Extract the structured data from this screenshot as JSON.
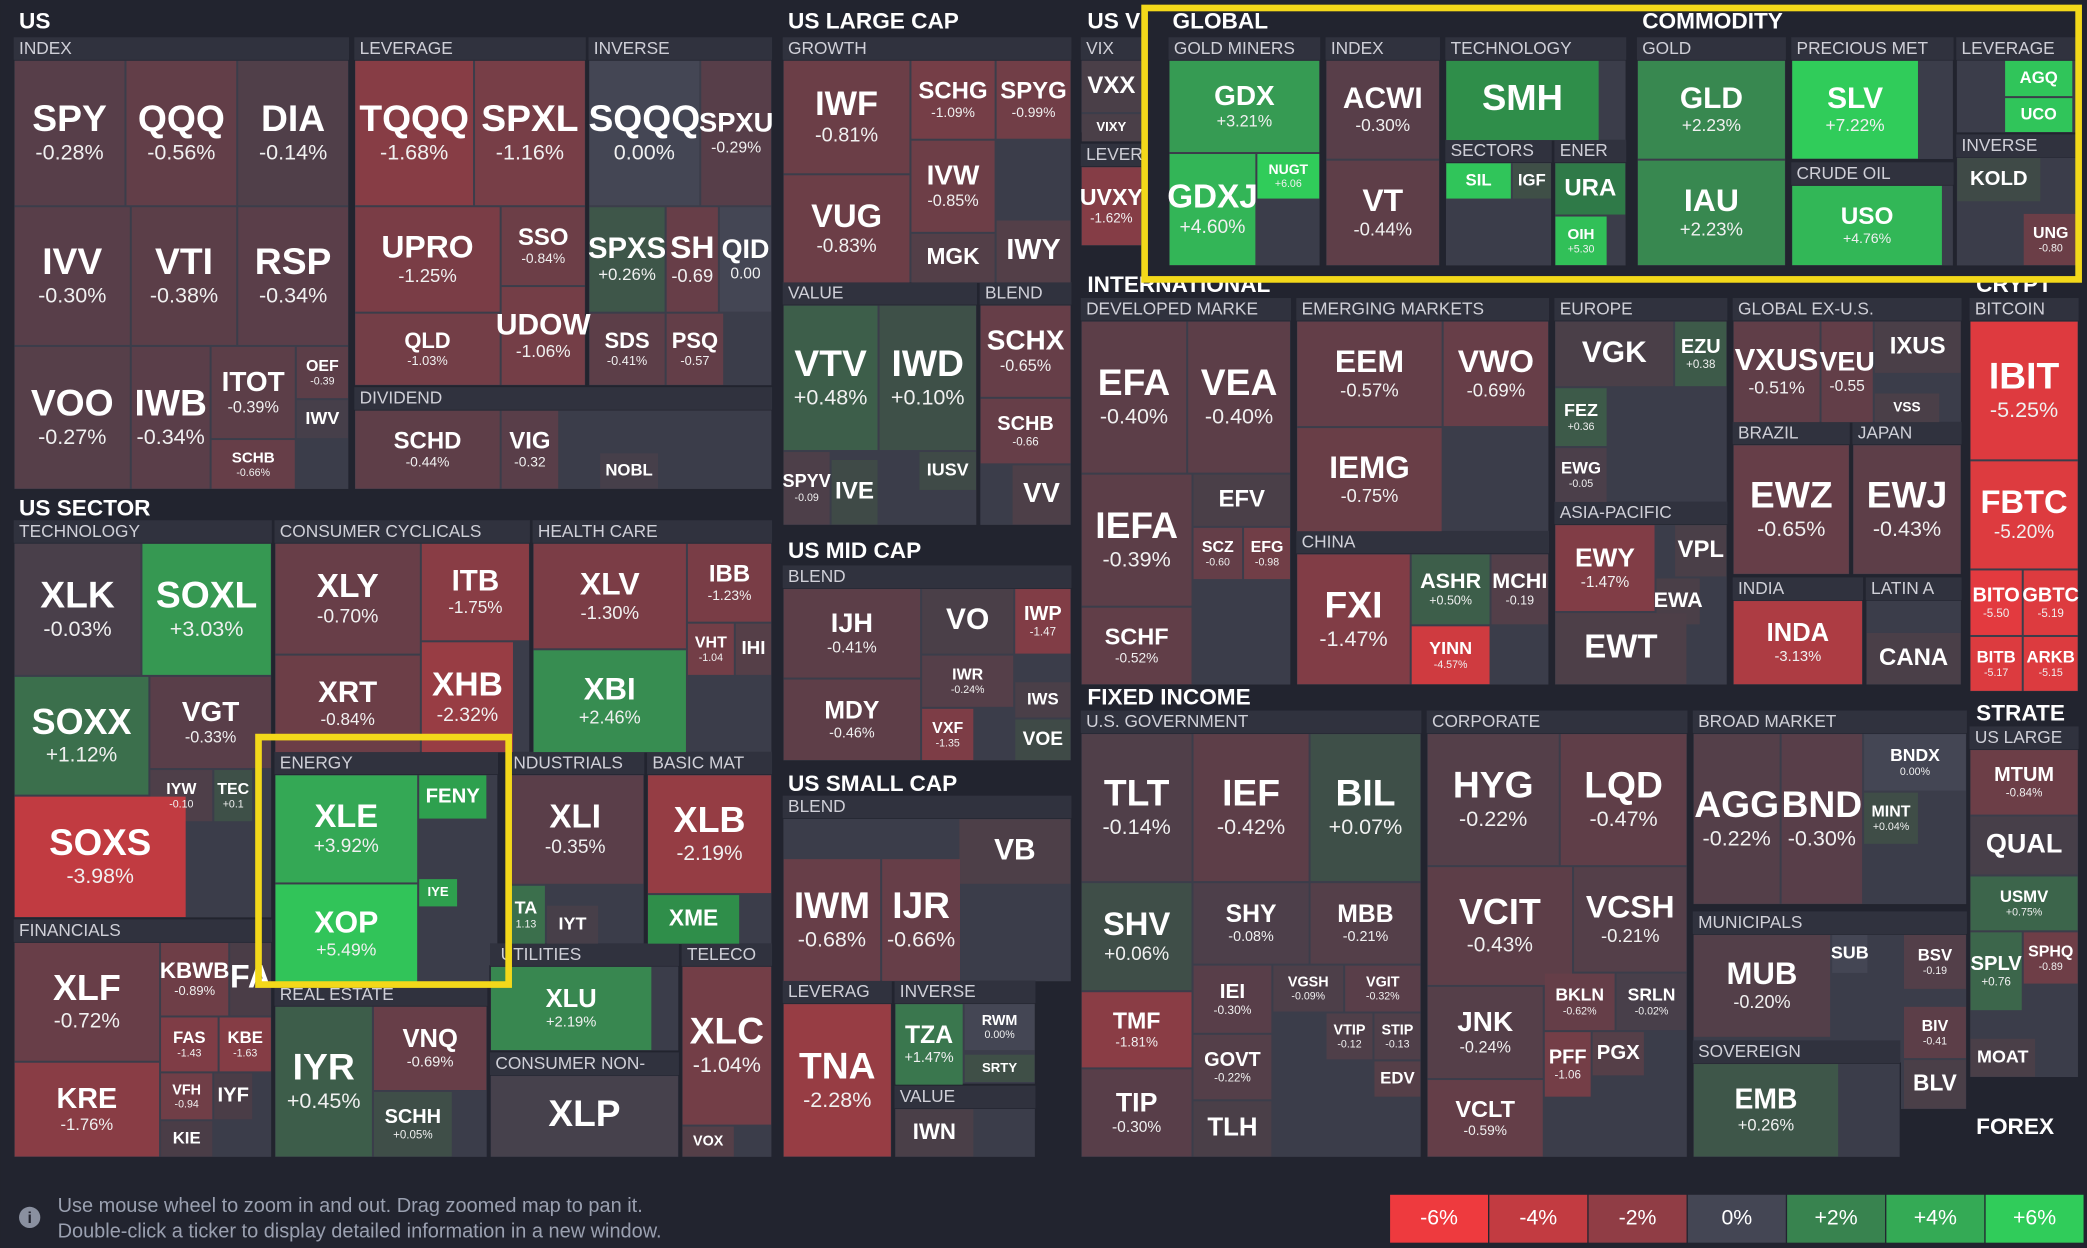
{
  "sections": [
    "US",
    "US SECTOR",
    "US LARGE CAP",
    "US MID CAP",
    "US SMALL CAP",
    "US V",
    "GLOBAL",
    "COMMODITY",
    "INTERNATIONAL",
    "CRYPT",
    "FIXED INCOME",
    "STRATE",
    "FOREX"
  ],
  "groups": [
    "INDEX",
    "LEVERAGE",
    "INVERSE",
    "DIVIDEND",
    "TECHNOLOGY",
    "FINANCIALS",
    "CONSUMER CYCLICALS",
    "HEALTH CARE",
    "ENERGY",
    "INDUSTRIALS",
    "BASIC MAT",
    "REAL ESTATE",
    "UTILITIES",
    "TELECO",
    "CONSUMER NON-",
    "GROWTH",
    "VALUE",
    "BLEND",
    "BLEND",
    "BLEND",
    "LEVERAG",
    "INVERSE",
    "VALUE",
    "VIX",
    "LEVER",
    "GOLD MINERS",
    "INDEX",
    "TECHNOLOGY",
    "SECTORS",
    "ENER",
    "GOLD",
    "PRECIOUS MET",
    "CRUDE OIL",
    "LEVERAGE",
    "INVERSE",
    "DEVELOPED MARKE",
    "EMERGING MARKETS",
    "CHINA",
    "EUROPE",
    "ASIA-PACIFIC",
    "GLOBAL EX-U.S.",
    "BRAZIL",
    "JAPAN",
    "INDIA",
    "LATIN A",
    "BITCOIN",
    "U.S. GOVERNMENT",
    "CORPORATE",
    "BROAD MARKET",
    "MUNICIPALS",
    "SOVEREIGN",
    "US LARGE"
  ],
  "tiles": [
    {
      "ticker": "SPY",
      "change": "-0.28%"
    },
    {
      "ticker": "QQQ",
      "change": "-0.56%"
    },
    {
      "ticker": "DIA",
      "change": "-0.14%"
    },
    {
      "ticker": "IVV",
      "change": "-0.30%"
    },
    {
      "ticker": "VTI",
      "change": "-0.38%"
    },
    {
      "ticker": "RSP",
      "change": "-0.34%"
    },
    {
      "ticker": "VOO",
      "change": "-0.27%"
    },
    {
      "ticker": "IWB",
      "change": "-0.34%"
    },
    {
      "ticker": "ITOT",
      "change": "-0.39%"
    },
    {
      "ticker": "OEF",
      "change": "-0.39"
    },
    {
      "ticker": "IWV",
      "color": "#463f4a"
    },
    {
      "ticker": "SCHB",
      "change": "-0.66%"
    },
    {
      "ticker": "TQQQ",
      "change": "-1.68%"
    },
    {
      "ticker": "SPXL",
      "change": "-1.16%"
    },
    {
      "ticker": "UPRO",
      "change": "-1.25%"
    },
    {
      "ticker": "SSO",
      "change": "-0.84%"
    },
    {
      "ticker": "QLD",
      "change": "-1.03%"
    },
    {
      "ticker": "UDOW",
      "change": "-1.06%"
    },
    {
      "ticker": "SQQQ",
      "change": "0.00%"
    },
    {
      "ticker": "SPXU",
      "change": "-0.29%"
    },
    {
      "ticker": "SPXS",
      "change": "+0.26%"
    },
    {
      "ticker": "SH",
      "change": "-0.69"
    },
    {
      "ticker": "QID",
      "change": "0.00"
    },
    {
      "ticker": "SDS",
      "change": "-0.41%"
    },
    {
      "ticker": "PSQ",
      "change": "-0.57"
    },
    {
      "ticker": "SCHD",
      "change": "-0.44%"
    },
    {
      "ticker": "VIG",
      "change": "-0.32"
    },
    {
      "ticker": "NOBL",
      "color": "#463f4a"
    },
    {
      "ticker": "XLK",
      "change": "-0.03%"
    },
    {
      "ticker": "SOXL",
      "change": "+3.03%"
    },
    {
      "ticker": "SOXX",
      "change": "+1.12%"
    },
    {
      "ticker": "VGT",
      "change": "-0.33%"
    },
    {
      "ticker": "IYW",
      "change": "-0.10"
    },
    {
      "ticker": "TEC",
      "change": "+0.1"
    },
    {
      "ticker": "SOXS",
      "change": "-3.98%"
    },
    {
      "ticker": "XLF",
      "change": "-0.72%"
    },
    {
      "ticker": "KBWB",
      "change": "-0.89%"
    },
    {
      "ticker": "FA",
      "color": "#4a3d47"
    },
    {
      "ticker": "KRE",
      "change": "-1.76%"
    },
    {
      "ticker": "FAS",
      "change": "-1.43"
    },
    {
      "ticker": "KBE",
      "change": "-1.63"
    },
    {
      "ticker": "VFH",
      "change": "-0.94"
    },
    {
      "ticker": "IYF",
      "color": "#4a3d47"
    },
    {
      "ticker": "KIE",
      "color": "#4a3d47"
    },
    {
      "ticker": "XLY",
      "change": "-0.70%"
    },
    {
      "ticker": "ITB",
      "change": "-1.75%"
    },
    {
      "ticker": "XRT",
      "change": "-0.84%"
    },
    {
      "ticker": "XHB",
      "change": "-2.32%"
    },
    {
      "ticker": "XLE",
      "change": "+3.92%"
    },
    {
      "ticker": "FENY",
      "color": "#2ea04e"
    },
    {
      "ticker": "XOP",
      "change": "+5.49%"
    },
    {
      "ticker": "IYE",
      "color": "#2ea04e"
    },
    {
      "ticker": "XLV",
      "change": "-1.30%"
    },
    {
      "ticker": "IBB",
      "change": "-1.23%"
    },
    {
      "ticker": "XBI",
      "change": "+2.46%"
    },
    {
      "ticker": "VHT",
      "change": "-1.04"
    },
    {
      "ticker": "IHI",
      "color": "#553f48"
    },
    {
      "ticker": "XLI",
      "change": "-0.35%"
    },
    {
      "ticker": "TA",
      "change": "1.13"
    },
    {
      "ticker": "IYT",
      "color": "#473f49"
    },
    {
      "ticker": "XLB",
      "change": "-2.19%"
    },
    {
      "ticker": "XME",
      "color": "#2f8e4a"
    },
    {
      "ticker": "IYR",
      "change": "+0.45%"
    },
    {
      "ticker": "VNQ",
      "change": "-0.69%"
    },
    {
      "ticker": "SCHH",
      "change": "+0.05%"
    },
    {
      "ticker": "XLU",
      "change": "+2.19%"
    },
    {
      "ticker": "XLC",
      "change": "-1.04%"
    },
    {
      "ticker": "VOX",
      "color": "#553f48"
    },
    {
      "ticker": "XLP",
      "color": "#46414c"
    },
    {
      "ticker": "IWF",
      "change": "-0.81%"
    },
    {
      "ticker": "SCHG",
      "change": "-1.09%"
    },
    {
      "ticker": "SPYG",
      "change": "-0.99%"
    },
    {
      "ticker": "VUG",
      "change": "-0.83%"
    },
    {
      "ticker": "IVW",
      "change": "-0.85%"
    },
    {
      "ticker": "MGK",
      "color": "#533f48"
    },
    {
      "ticker": "IWY",
      "color": "#533f48"
    },
    {
      "ticker": "VTV",
      "change": "+0.48%"
    },
    {
      "ticker": "IWD",
      "change": "+0.10%"
    },
    {
      "ticker": "SPYV",
      "change": "-0.09"
    },
    {
      "ticker": "IVE",
      "color": "#3f4a47"
    },
    {
      "ticker": "IUSV",
      "color": "#3f4a47"
    },
    {
      "ticker": "SCHX",
      "change": "-0.65%"
    },
    {
      "ticker": "SCHB",
      "change": "-0.66"
    },
    {
      "ticker": "VV",
      "color": "#4d3f48"
    },
    {
      "ticker": "IJH",
      "change": "-0.41%"
    },
    {
      "ticker": "VO",
      "color": "#4a3f48"
    },
    {
      "ticker": "IWP",
      "change": "-1.47"
    },
    {
      "ticker": "IWR",
      "change": "-0.24%"
    },
    {
      "ticker": "MDY",
      "change": "-0.46%"
    },
    {
      "ticker": "VXF",
      "change": "-1.35"
    },
    {
      "ticker": "IWS",
      "color": "#4a3f48"
    },
    {
      "ticker": "VOE",
      "color": "#3f4a47"
    },
    {
      "ticker": "VB",
      "color": "#4d3f48"
    },
    {
      "ticker": "IWM",
      "change": "-0.68%"
    },
    {
      "ticker": "IJR",
      "change": "-0.66%"
    },
    {
      "ticker": "TNA",
      "change": "-2.28%"
    },
    {
      "ticker": "TZA",
      "change": "+1.47%"
    },
    {
      "ticker": "RWM",
      "change": "0.00%"
    },
    {
      "ticker": "SRTY",
      "color": "#3f4f47"
    },
    {
      "ticker": "IWN",
      "color": "#4a3f48"
    },
    {
      "ticker": "VXX",
      "color": "#4a3f48"
    },
    {
      "ticker": "VIXY",
      "color": "#4a3f48"
    },
    {
      "ticker": "UVXY",
      "change": "-1.62%"
    },
    {
      "ticker": "GDX",
      "change": "+3.21%"
    },
    {
      "ticker": "GDXJ",
      "change": "+4.60%"
    },
    {
      "ticker": "NUGT",
      "change": "+6.06"
    },
    {
      "ticker": "ACWI",
      "change": "-0.30%"
    },
    {
      "ticker": "VT",
      "change": "-0.44%"
    },
    {
      "ticker": "SMH",
      "color": "#2f8e4a"
    },
    {
      "ticker": "SIL",
      "color": "#30c55a"
    },
    {
      "ticker": "IGF",
      "color": "#3f4f47"
    },
    {
      "ticker": "URA",
      "color": "#2f7a48"
    },
    {
      "ticker": "OIH",
      "change": "+5.30"
    },
    {
      "ticker": "GLD",
      "change": "+2.23%"
    },
    {
      "ticker": "IAU",
      "change": "+2.23%"
    },
    {
      "ticker": "SLV",
      "change": "+7.22%"
    },
    {
      "ticker": "USO",
      "change": "+4.76%"
    },
    {
      "ticker": "AGQ",
      "color": "#30c55a"
    },
    {
      "ticker": "UCO",
      "color": "#30c55a"
    },
    {
      "ticker": "KOLD",
      "color": "#3f4a47"
    },
    {
      "ticker": "UNG",
      "change": "-0.80"
    },
    {
      "ticker": "EFA",
      "change": "-0.40%"
    },
    {
      "ticker": "VEA",
      "change": "-0.40%"
    },
    {
      "ticker": "EFV",
      "color": "#4a3f48"
    },
    {
      "ticker": "IEFA",
      "change": "-0.39%"
    },
    {
      "ticker": "SCZ",
      "change": "-0.60"
    },
    {
      "ticker": "EFG",
      "change": "-0.98"
    },
    {
      "ticker": "SCHF",
      "change": "-0.52%"
    },
    {
      "ticker": "EEM",
      "change": "-0.57%"
    },
    {
      "ticker": "VWO",
      "change": "-0.69%"
    },
    {
      "ticker": "IEMG",
      "change": "-0.75%"
    },
    {
      "ticker": "FXI",
      "change": "-1.47%"
    },
    {
      "ticker": "ASHR",
      "change": "+0.50%"
    },
    {
      "ticker": "MCHI",
      "change": "-0.19"
    },
    {
      "ticker": "YINN",
      "change": "-4.57%"
    },
    {
      "ticker": "VGK",
      "color": "#4a3f48"
    },
    {
      "ticker": "EZU",
      "change": "+0.38"
    },
    {
      "ticker": "FEZ",
      "change": "+0.36"
    },
    {
      "ticker": "EWG",
      "change": "-0.05"
    },
    {
      "ticker": "EWY",
      "change": "-1.47%"
    },
    {
      "ticker": "VPL",
      "color": "#4a3f48"
    },
    {
      "ticker": "EWA",
      "color": "#4a3f48"
    },
    {
      "ticker": "EWT",
      "color": "#4d3f48"
    },
    {
      "ticker": "VXUS",
      "change": "-0.51%"
    },
    {
      "ticker": "VEU",
      "change": "-0.55"
    },
    {
      "ticker": "IXUS",
      "color": "#4a3f48"
    },
    {
      "ticker": "VSS",
      "color": "#4a3f48"
    },
    {
      "ticker": "EWZ",
      "change": "-0.65%"
    },
    {
      "ticker": "EWJ",
      "change": "-0.43%"
    },
    {
      "ticker": "INDA",
      "change": "-3.13%"
    },
    {
      "ticker": "CANA",
      "color": "#4a3f48"
    },
    {
      "ticker": "IBIT",
      "change": "-5.25%"
    },
    {
      "ticker": "FBTC",
      "change": "-5.20%"
    },
    {
      "ticker": "BITO",
      "change": "-5.50"
    },
    {
      "ticker": "GBTC",
      "change": "-5.19"
    },
    {
      "ticker": "BITB",
      "change": "-5.17"
    },
    {
      "ticker": "ARKB",
      "change": "-5.15"
    },
    {
      "ticker": "TLT",
      "change": "-0.14%"
    },
    {
      "ticker": "IEF",
      "change": "-0.42%"
    },
    {
      "ticker": "BIL",
      "change": "+0.07%"
    },
    {
      "ticker": "SHV",
      "change": "+0.06%"
    },
    {
      "ticker": "SHY",
      "change": "-0.08%"
    },
    {
      "ticker": "MBB",
      "change": "-0.21%"
    },
    {
      "ticker": "TMF",
      "change": "-1.81%"
    },
    {
      "ticker": "TIP",
      "change": "-0.30%"
    },
    {
      "ticker": "IEI",
      "change": "-0.30%"
    },
    {
      "ticker": "VGSH",
      "change": "-0.09%"
    },
    {
      "ticker": "VGIT",
      "change": "-0.32%"
    },
    {
      "ticker": "GOVT",
      "change": "-0.22%"
    },
    {
      "ticker": "VTIP",
      "change": "-0.12"
    },
    {
      "ticker": "STIP",
      "change": "-0.13"
    },
    {
      "ticker": "EDV",
      "color": "#553f48"
    },
    {
      "ticker": "TLH",
      "color": "#4a3f48"
    },
    {
      "ticker": "HYG",
      "change": "-0.22%"
    },
    {
      "ticker": "LQD",
      "change": "-0.47%"
    },
    {
      "ticker": "VCIT",
      "change": "-0.43%"
    },
    {
      "ticker": "VCSH",
      "change": "-0.21%"
    },
    {
      "ticker": "JNK",
      "change": "-0.24%"
    },
    {
      "ticker": "BKLN",
      "change": "-0.62%"
    },
    {
      "ticker": "SRLN",
      "change": "-0.02%"
    },
    {
      "ticker": "PFF",
      "change": "-1.06"
    },
    {
      "ticker": "PGX",
      "color": "#553f48"
    },
    {
      "ticker": "VCLT",
      "change": "-0.59%"
    },
    {
      "ticker": "AGG",
      "change": "-0.22%"
    },
    {
      "ticker": "BND",
      "change": "-0.30%"
    },
    {
      "ticker": "BNDX",
      "change": "0.00%"
    },
    {
      "ticker": "MINT",
      "change": "+0.04%"
    },
    {
      "ticker": "MUB",
      "change": "-0.20%"
    },
    {
      "ticker": "SUB",
      "color": "#444654"
    },
    {
      "ticker": "BSV",
      "change": "-0.19"
    },
    {
      "ticker": "BIV",
      "change": "-0.41"
    },
    {
      "ticker": "BLV",
      "color": "#4a3f48"
    },
    {
      "ticker": "EMB",
      "change": "+0.26%"
    },
    {
      "ticker": "MTUM",
      "change": "-0.84%"
    },
    {
      "ticker": "QUAL",
      "color": "#473f49"
    },
    {
      "ticker": "USMV",
      "change": "+0.75%"
    },
    {
      "ticker": "SPLV",
      "change": "+0.76"
    },
    {
      "ticker": "SPHQ",
      "change": "-0.89"
    },
    {
      "ticker": "MOAT",
      "color": "#4a3f48"
    }
  ],
  "hint": [
    "Use mouse wheel to zoom in and out. Drag zoomed map to pan it.",
    "Double-click a ticker to display detailed information in a new window."
  ],
  "legend": [
    "-6%",
    "-4%",
    "-2%",
    "0%",
    "+2%",
    "+4%",
    "+6%"
  ]
}
